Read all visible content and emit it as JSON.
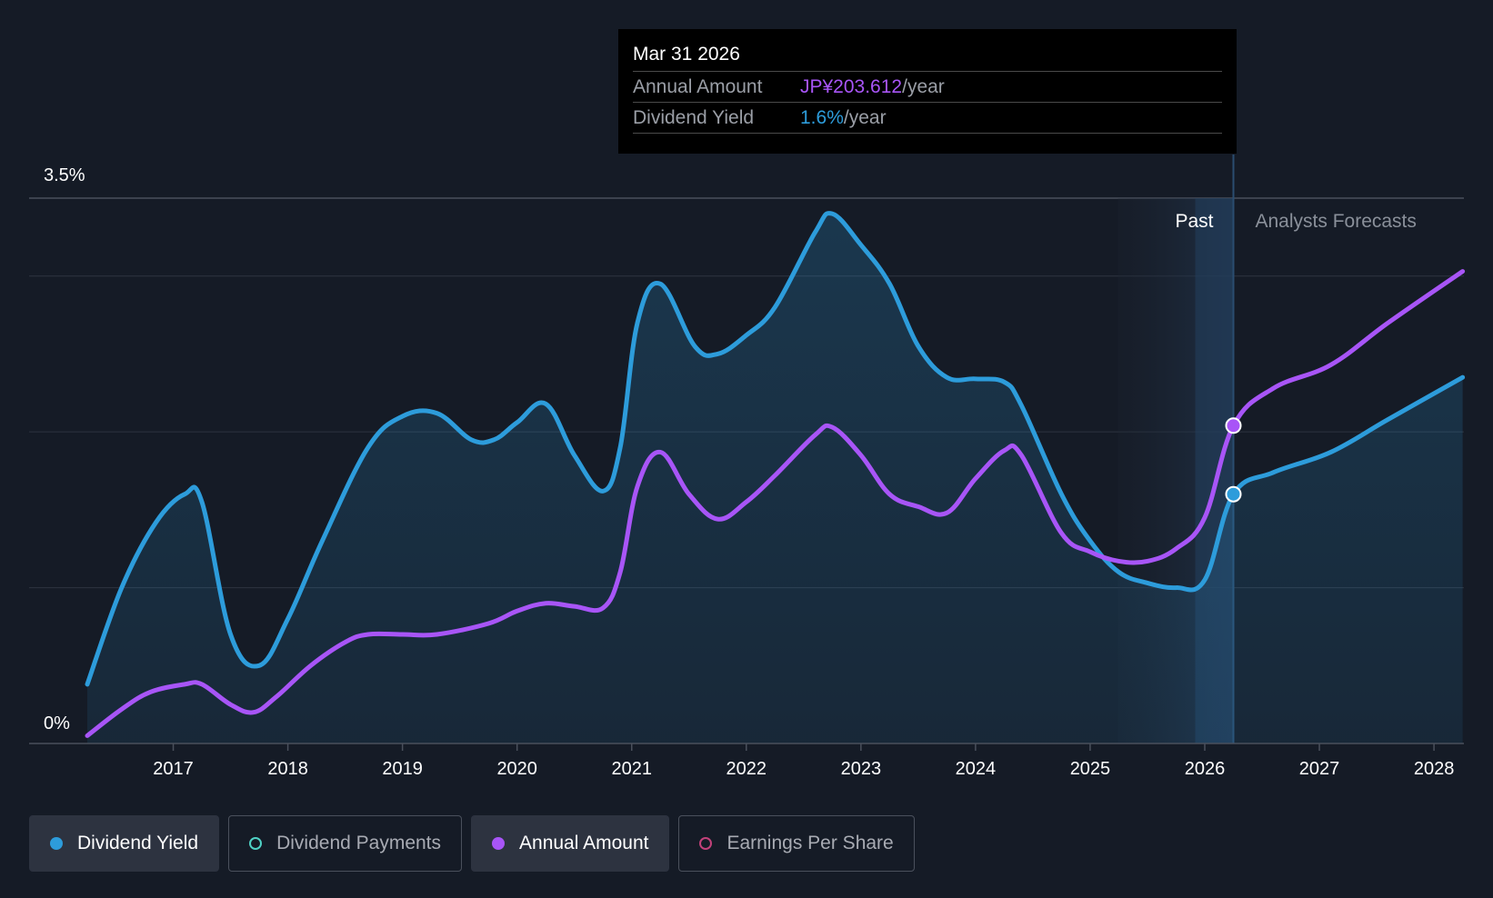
{
  "colors": {
    "background": "#151b26",
    "yield": "#2d9cdb",
    "amount": "#a855f7",
    "payments": "#4fd1c5",
    "eps": "#c2417a",
    "grid": "#2e3440"
  },
  "tooltip": {
    "date": "Mar 31 2026",
    "rows": [
      {
        "label": "Annual Amount",
        "value": "JP¥203.612",
        "unit": "/year"
      },
      {
        "label": "Dividend Yield",
        "value": "1.6%",
        "unit": "/year"
      }
    ]
  },
  "regions": {
    "past": "Past",
    "forecast": "Analysts Forecasts"
  },
  "legend": [
    {
      "label": "Dividend Yield",
      "active": true,
      "icon": "filled-dot"
    },
    {
      "label": "Dividend Payments",
      "active": false,
      "icon": "hollow-dot"
    },
    {
      "label": "Annual Amount",
      "active": true,
      "icon": "filled-dot"
    },
    {
      "label": "Earnings Per Share",
      "active": false,
      "icon": "hollow-dot"
    }
  ],
  "chart_data": {
    "type": "line",
    "y_tick_labels": [
      "0%",
      "3.5%"
    ],
    "ylim": [
      0,
      3.5
    ],
    "x_tick_labels": [
      "2017",
      "2018",
      "2019",
      "2020",
      "2021",
      "2022",
      "2023",
      "2024",
      "2025",
      "2026",
      "2027",
      "2028"
    ],
    "xlim": [
      2016.25,
      2028.25
    ],
    "past_forecast_boundary": 2026.25,
    "highlight_x": 2026.25,
    "series": [
      {
        "name": "Dividend Yield",
        "area": true,
        "points": [
          [
            2016.25,
            0.38
          ],
          [
            2016.55,
            1.0
          ],
          [
            2016.85,
            1.42
          ],
          [
            2017.1,
            1.6
          ],
          [
            2017.25,
            1.55
          ],
          [
            2017.5,
            0.7
          ],
          [
            2017.75,
            0.5
          ],
          [
            2018.0,
            0.8
          ],
          [
            2018.3,
            1.3
          ],
          [
            2018.7,
            1.9
          ],
          [
            2019.0,
            2.1
          ],
          [
            2019.3,
            2.12
          ],
          [
            2019.6,
            1.95
          ],
          [
            2019.8,
            1.95
          ],
          [
            2020.0,
            2.06
          ],
          [
            2020.25,
            2.18
          ],
          [
            2020.5,
            1.85
          ],
          [
            2020.75,
            1.62
          ],
          [
            2020.9,
            1.9
          ],
          [
            2021.05,
            2.7
          ],
          [
            2021.25,
            2.95
          ],
          [
            2021.55,
            2.55
          ],
          [
            2021.75,
            2.5
          ],
          [
            2022.0,
            2.62
          ],
          [
            2022.25,
            2.8
          ],
          [
            2022.6,
            3.28
          ],
          [
            2022.75,
            3.4
          ],
          [
            2023.0,
            3.2
          ],
          [
            2023.25,
            2.95
          ],
          [
            2023.5,
            2.55
          ],
          [
            2023.75,
            2.35
          ],
          [
            2024.0,
            2.34
          ],
          [
            2024.25,
            2.32
          ],
          [
            2024.4,
            2.17
          ],
          [
            2024.75,
            1.6
          ],
          [
            2025.0,
            1.3
          ],
          [
            2025.25,
            1.1
          ],
          [
            2025.5,
            1.03
          ],
          [
            2025.75,
            1.0
          ],
          [
            2026.0,
            1.05
          ],
          [
            2026.25,
            1.6
          ],
          [
            2026.6,
            1.74
          ],
          [
            2027.1,
            1.87
          ],
          [
            2027.6,
            2.08
          ],
          [
            2028.25,
            2.35
          ]
        ]
      },
      {
        "name": "Annual Amount",
        "area": false,
        "points": [
          [
            2016.25,
            0.05
          ],
          [
            2016.55,
            0.22
          ],
          [
            2016.8,
            0.33
          ],
          [
            2017.1,
            0.38
          ],
          [
            2017.25,
            0.38
          ],
          [
            2017.5,
            0.25
          ],
          [
            2017.7,
            0.2
          ],
          [
            2017.9,
            0.3
          ],
          [
            2018.2,
            0.5
          ],
          [
            2018.5,
            0.65
          ],
          [
            2018.7,
            0.7
          ],
          [
            2019.0,
            0.7
          ],
          [
            2019.3,
            0.7
          ],
          [
            2019.75,
            0.77
          ],
          [
            2020.0,
            0.85
          ],
          [
            2020.25,
            0.9
          ],
          [
            2020.5,
            0.88
          ],
          [
            2020.75,
            0.87
          ],
          [
            2020.9,
            1.1
          ],
          [
            2021.05,
            1.65
          ],
          [
            2021.25,
            1.87
          ],
          [
            2021.5,
            1.6
          ],
          [
            2021.75,
            1.44
          ],
          [
            2022.0,
            1.55
          ],
          [
            2022.25,
            1.72
          ],
          [
            2022.6,
            1.98
          ],
          [
            2022.75,
            2.03
          ],
          [
            2023.0,
            1.85
          ],
          [
            2023.25,
            1.6
          ],
          [
            2023.5,
            1.52
          ],
          [
            2023.75,
            1.48
          ],
          [
            2024.0,
            1.7
          ],
          [
            2024.25,
            1.88
          ],
          [
            2024.4,
            1.85
          ],
          [
            2024.75,
            1.35
          ],
          [
            2025.0,
            1.23
          ],
          [
            2025.25,
            1.17
          ],
          [
            2025.5,
            1.17
          ],
          [
            2025.75,
            1.25
          ],
          [
            2026.0,
            1.45
          ],
          [
            2026.25,
            2.04
          ],
          [
            2026.6,
            2.28
          ],
          [
            2027.1,
            2.43
          ],
          [
            2027.6,
            2.7
          ],
          [
            2028.25,
            3.03
          ]
        ]
      }
    ]
  }
}
